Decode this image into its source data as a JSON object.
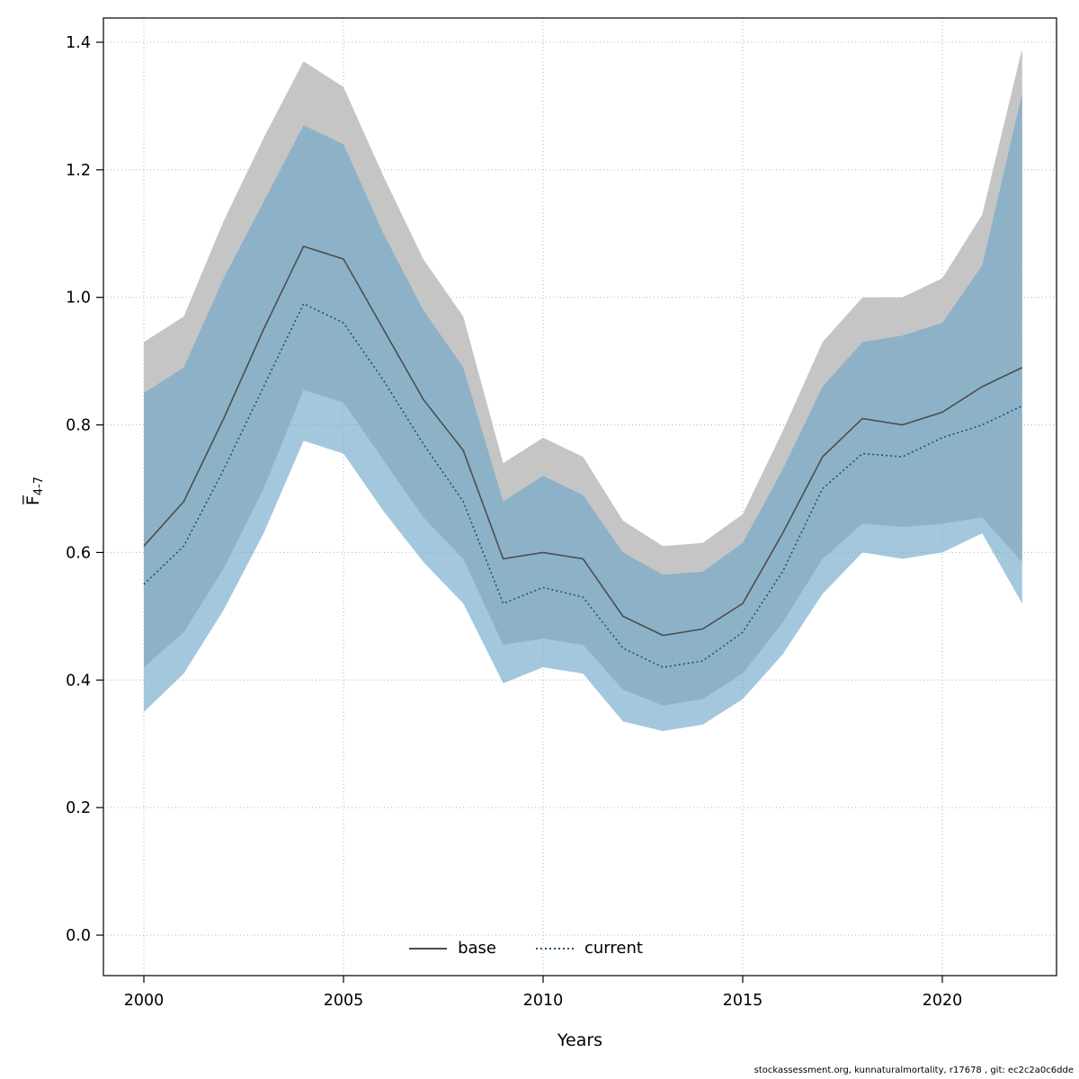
{
  "chart_data": {
    "type": "line",
    "title": "",
    "xlabel": "Years",
    "ylabel": "F-bar 4-7",
    "ylabel_main": "F̅",
    "ylabel_sub": "4-7",
    "xlim": [
      1999,
      2023
    ],
    "ylim": [
      0.0,
      1.4
    ],
    "xticks": [
      2000,
      2005,
      2010,
      2015,
      2020
    ],
    "yticks": [
      "0.0",
      "0.2",
      "0.4",
      "0.6",
      "0.8",
      "1.0",
      "1.2",
      "1.4"
    ],
    "grid": true,
    "grid_color": "#b3b3b3",
    "years": [
      2000,
      2001,
      2002,
      2003,
      2004,
      2005,
      2006,
      2007,
      2008,
      2009,
      2010,
      2011,
      2012,
      2013,
      2014,
      2015,
      2016,
      2017,
      2018,
      2019,
      2020,
      2021,
      2022
    ],
    "series": [
      {
        "name": "base",
        "style": "solid",
        "color": "#4d4d4d",
        "band_color": "#c5c5c5",
        "values": [
          0.61,
          0.68,
          0.81,
          0.95,
          1.08,
          1.06,
          0.95,
          0.84,
          0.76,
          0.59,
          0.6,
          0.59,
          0.5,
          0.47,
          0.48,
          0.52,
          0.63,
          0.75,
          0.81,
          0.8,
          0.82,
          0.86,
          0.89
        ],
        "ci_lo": [
          0.42,
          0.475,
          0.575,
          0.7,
          0.855,
          0.835,
          0.745,
          0.655,
          0.59,
          0.455,
          0.465,
          0.455,
          0.385,
          0.36,
          0.37,
          0.41,
          0.49,
          0.59,
          0.645,
          0.64,
          0.645,
          0.655,
          0.585
        ],
        "ci_hi": [
          0.93,
          0.97,
          1.12,
          1.25,
          1.37,
          1.33,
          1.19,
          1.06,
          0.97,
          0.74,
          0.78,
          0.75,
          0.65,
          0.61,
          0.615,
          0.66,
          0.79,
          0.93,
          1.0,
          1.0,
          1.03,
          1.13,
          1.39
        ]
      },
      {
        "name": "current",
        "style": "dotted",
        "color": "#1a5276",
        "band_color": "rgba(107,167,202,0.62)",
        "values": [
          0.55,
          0.61,
          0.73,
          0.86,
          0.99,
          0.96,
          0.87,
          0.77,
          0.68,
          0.52,
          0.545,
          0.53,
          0.45,
          0.42,
          0.43,
          0.475,
          0.57,
          0.7,
          0.755,
          0.75,
          0.78,
          0.8,
          0.83
        ],
        "ci_lo": [
          0.35,
          0.41,
          0.51,
          0.63,
          0.775,
          0.755,
          0.665,
          0.585,
          0.52,
          0.395,
          0.42,
          0.41,
          0.335,
          0.32,
          0.33,
          0.37,
          0.44,
          0.535,
          0.6,
          0.59,
          0.6,
          0.63,
          0.52
        ],
        "ci_hi": [
          0.85,
          0.89,
          1.03,
          1.15,
          1.27,
          1.24,
          1.1,
          0.98,
          0.89,
          0.68,
          0.72,
          0.69,
          0.6,
          0.565,
          0.57,
          0.615,
          0.73,
          0.86,
          0.93,
          0.94,
          0.96,
          1.05,
          1.32
        ]
      }
    ],
    "legend": {
      "position": "bottom-center",
      "items": [
        {
          "label": "base"
        },
        {
          "label": "current"
        }
      ]
    }
  },
  "footer": {
    "text": "stockassessment.org, kunnaturalmortality, r17678 , git: ec2c2a0c6dde"
  }
}
